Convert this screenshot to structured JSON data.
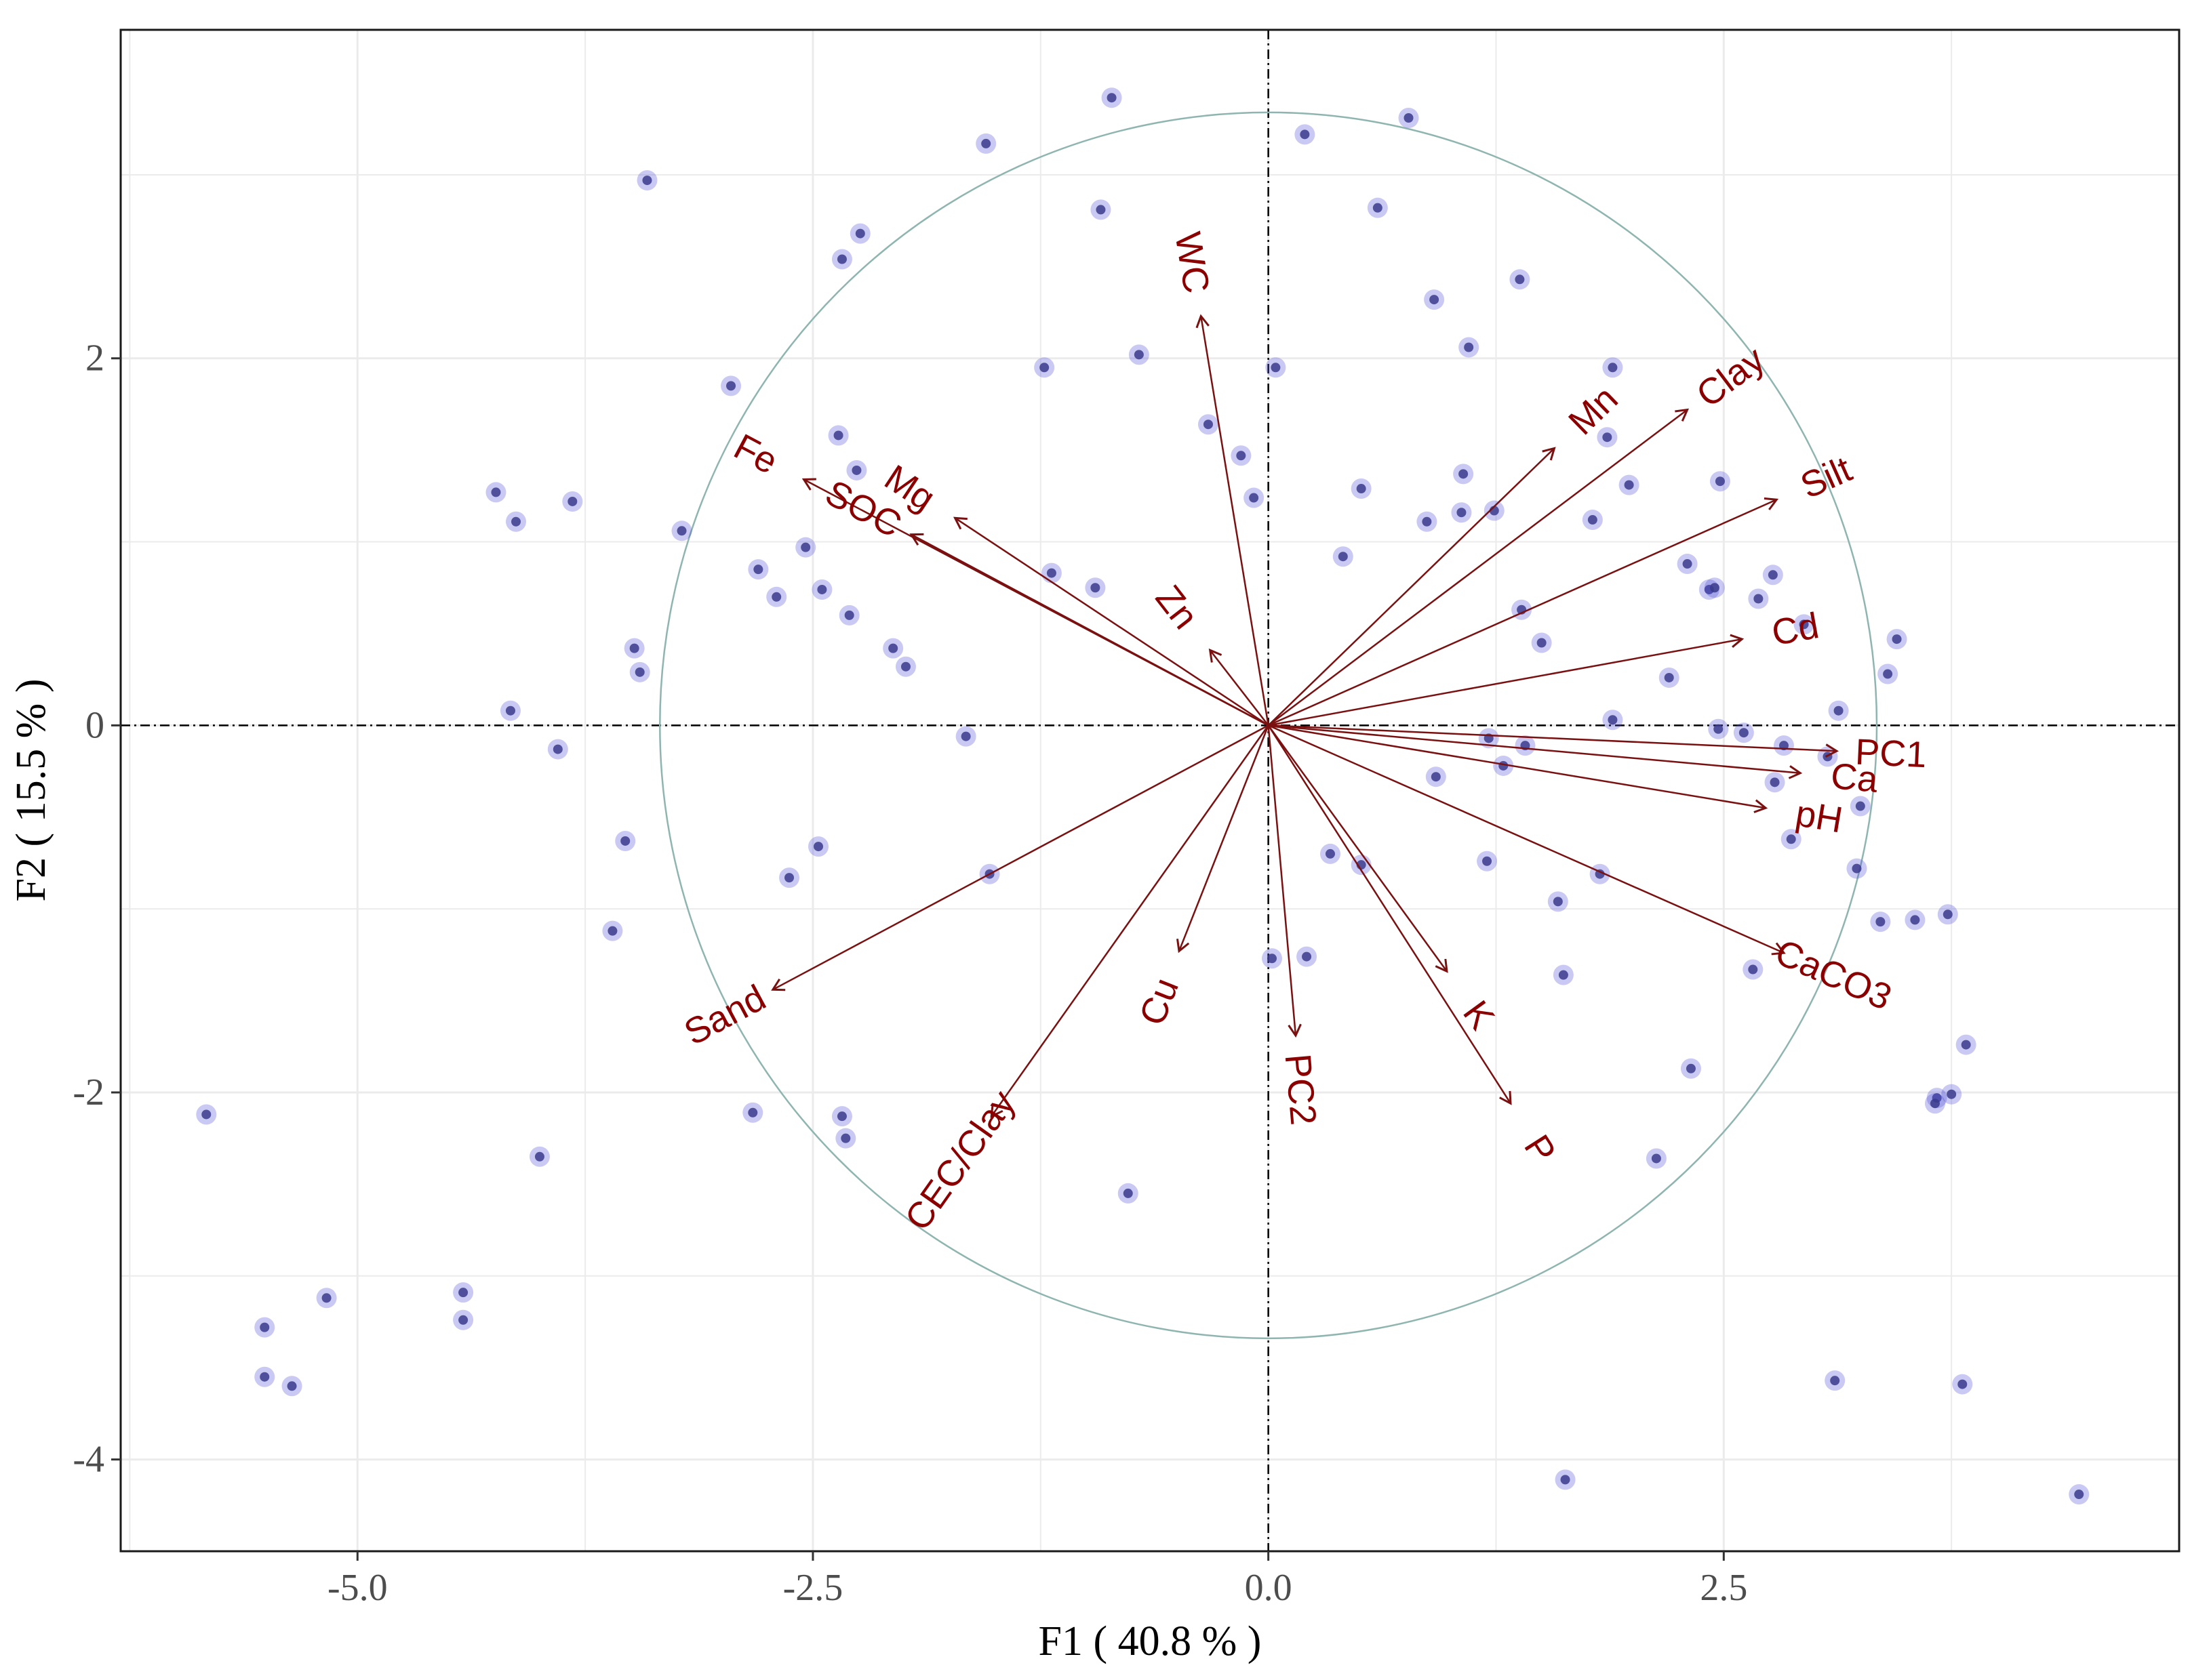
{
  "chart_data": {
    "type": "scatter",
    "subtype": "pca-biplot",
    "xlabel": "F1 ( 40.8 % )",
    "ylabel": "F2 ( 15.5 % )",
    "xlim": [
      -6.3,
      5.0
    ],
    "ylim": [
      -4.5,
      3.79
    ],
    "x_ticks": [
      -5.0,
      -2.5,
      0.0,
      2.5
    ],
    "x_tick_labels": [
      "-5.0",
      "-2.5",
      "0.0",
      "2.5"
    ],
    "y_ticks": [
      -4,
      -2,
      0,
      2
    ],
    "y_tick_labels": [
      "-4",
      "-2",
      "0",
      "2"
    ],
    "grid": true,
    "correlation_circle_radius": 3.34,
    "colors": {
      "points": "#4b4bd6",
      "arrows": "#7a1010",
      "labels": "#8b0000",
      "circle": "#8fb5b0",
      "grid": "#ebebeb"
    },
    "series": [
      {
        "name": "observations",
        "points": [
          [
            -0.86,
            3.42
          ],
          [
            0.77,
            3.31
          ],
          [
            -1.55,
            3.17
          ],
          [
            0.2,
            3.22
          ],
          [
            -3.41,
            2.97
          ],
          [
            -0.92,
            2.81
          ],
          [
            0.6,
            2.82
          ],
          [
            -2.24,
            2.68
          ],
          [
            -2.34,
            2.54
          ],
          [
            0.91,
            2.32
          ],
          [
            1.38,
            2.43
          ],
          [
            1.1,
            2.06
          ],
          [
            -0.71,
            2.02
          ],
          [
            -1.23,
            1.95
          ],
          [
            0.04,
            1.95
          ],
          [
            -2.95,
            1.85
          ],
          [
            1.89,
            1.95
          ],
          [
            -0.33,
            1.64
          ],
          [
            -2.36,
            1.58
          ],
          [
            1.86,
            1.57
          ],
          [
            -0.15,
            1.47
          ],
          [
            -2.26,
            1.39
          ],
          [
            1.07,
            1.37
          ],
          [
            -4.24,
            1.27
          ],
          [
            -3.82,
            1.22
          ],
          [
            0.51,
            1.29
          ],
          [
            1.98,
            1.31
          ],
          [
            2.48,
            1.33
          ],
          [
            -0.08,
            1.24
          ],
          [
            -4.13,
            1.11
          ],
          [
            -3.22,
            1.06
          ],
          [
            0.87,
            1.11
          ],
          [
            1.06,
            1.16
          ],
          [
            1.24,
            1.17
          ],
          [
            1.78,
            1.12
          ],
          [
            -2.54,
            0.97
          ],
          [
            0.41,
            0.92
          ],
          [
            2.3,
            0.88
          ],
          [
            -2.8,
            0.85
          ],
          [
            -1.19,
            0.83
          ],
          [
            2.77,
            0.82
          ],
          [
            -0.95,
            0.75
          ],
          [
            -2.45,
            0.74
          ],
          [
            2.42,
            0.74
          ],
          [
            2.45,
            0.75
          ],
          [
            -2.7,
            0.7
          ],
          [
            2.69,
            0.69
          ],
          [
            1.39,
            0.63
          ],
          [
            -2.3,
            0.6
          ],
          [
            2.94,
            0.55
          ],
          [
            -3.48,
            0.42
          ],
          [
            -2.06,
            0.42
          ],
          [
            1.5,
            0.45
          ],
          [
            3.45,
            0.47
          ],
          [
            -3.45,
            0.29
          ],
          [
            -1.99,
            0.32
          ],
          [
            2.2,
            0.26
          ],
          [
            3.4,
            0.28
          ],
          [
            -4.16,
            0.08
          ],
          [
            3.13,
            0.08
          ],
          [
            1.89,
            0.03
          ],
          [
            2.47,
            -0.02
          ],
          [
            2.61,
            -0.04
          ],
          [
            -1.66,
            -0.06
          ],
          [
            1.21,
            -0.07
          ],
          [
            1.41,
            -0.11
          ],
          [
            2.83,
            -0.11
          ],
          [
            3.07,
            -0.17
          ],
          [
            -3.9,
            -0.13
          ],
          [
            1.29,
            -0.22
          ],
          [
            0.92,
            -0.28
          ],
          [
            2.78,
            -0.31
          ],
          [
            3.25,
            -0.44
          ],
          [
            -3.53,
            -0.63
          ],
          [
            -2.47,
            -0.66
          ],
          [
            2.87,
            -0.62
          ],
          [
            0.34,
            -0.7
          ],
          [
            0.51,
            -0.76
          ],
          [
            1.2,
            -0.74
          ],
          [
            3.23,
            -0.78
          ],
          [
            -1.53,
            -0.81
          ],
          [
            -2.63,
            -0.83
          ],
          [
            1.82,
            -0.81
          ],
          [
            1.59,
            -0.96
          ],
          [
            3.73,
            -1.03
          ],
          [
            3.55,
            -1.06
          ],
          [
            3.36,
            -1.07
          ],
          [
            -3.6,
            -1.12
          ],
          [
            0.02,
            -1.27
          ],
          [
            0.21,
            -1.26
          ],
          [
            2.66,
            -1.33
          ],
          [
            1.62,
            -1.36
          ],
          [
            3.83,
            -1.74
          ],
          [
            2.32,
            -1.87
          ],
          [
            3.75,
            -2.01
          ],
          [
            3.67,
            -2.03
          ],
          [
            3.66,
            -2.06
          ],
          [
            -5.83,
            -2.12
          ],
          [
            -2.83,
            -2.11
          ],
          [
            -2.34,
            -2.13
          ],
          [
            -2.32,
            -2.25
          ],
          [
            -4.0,
            -2.35
          ],
          [
            2.13,
            -2.36
          ],
          [
            -0.77,
            -2.55
          ],
          [
            -4.42,
            -3.09
          ],
          [
            -4.42,
            -3.24
          ],
          [
            -5.17,
            -3.12
          ],
          [
            -5.51,
            -3.28
          ],
          [
            -5.51,
            -3.55
          ],
          [
            -5.36,
            -3.6
          ],
          [
            3.11,
            -3.57
          ],
          [
            3.81,
            -3.59
          ],
          [
            1.63,
            -4.11
          ],
          [
            4.45,
            -4.19
          ]
        ]
      },
      {
        "name": "variables",
        "vectors": [
          {
            "label": "WC",
            "x": -0.37,
            "y": 2.23
          },
          {
            "label": "Mn",
            "x": 1.57,
            "y": 1.51
          },
          {
            "label": "Clay",
            "x": 2.3,
            "y": 1.72
          },
          {
            "label": "Silt",
            "x": 2.79,
            "y": 1.23
          },
          {
            "label": "Cd",
            "x": 2.6,
            "y": 0.47
          },
          {
            "label": "PC1",
            "x": 3.12,
            "y": -0.14
          },
          {
            "label": "Ca",
            "x": 2.92,
            "y": -0.26
          },
          {
            "label": "pH",
            "x": 2.73,
            "y": -0.45
          },
          {
            "label": "CaCO3",
            "x": 2.83,
            "y": -1.24
          },
          {
            "label": "P",
            "x": 1.33,
            "y": -2.06
          },
          {
            "label": "K",
            "x": 0.98,
            "y": -1.34
          },
          {
            "label": "PC2",
            "x": 0.15,
            "y": -1.69
          },
          {
            "label": "Cu",
            "x": -0.49,
            "y": -1.23
          },
          {
            "label": "CEC/Clay",
            "x": -1.52,
            "y": -2.13
          },
          {
            "label": "Sand",
            "x": -2.72,
            "y": -1.44
          },
          {
            "label": "Zn",
            "x": -0.32,
            "y": 0.41
          },
          {
            "label": "Mg",
            "x": -1.72,
            "y": 1.13
          },
          {
            "label": "SOC",
            "x": -1.96,
            "y": 1.04
          },
          {
            "label": "Fe",
            "x": -2.55,
            "y": 1.34
          }
        ]
      }
    ]
  }
}
